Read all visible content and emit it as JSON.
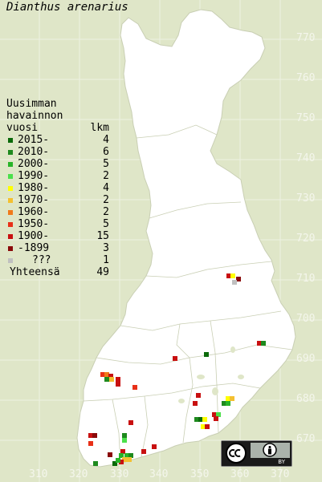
{
  "title": "Dianthus arenarius",
  "legend": {
    "header_lines": [
      "Uusimman",
      "havainnon",
      "vuosi"
    ],
    "count_header": "lkm",
    "items": [
      {
        "label": "2015-",
        "count": "4",
        "color": "#0a6a0a"
      },
      {
        "label": "2010-",
        "count": "6",
        "color": "#1e8a1e"
      },
      {
        "label": "2000-",
        "count": "5",
        "color": "#28b428"
      },
      {
        "label": "1990-",
        "count": "2",
        "color": "#4be04b"
      },
      {
        "label": "1980-",
        "count": "4",
        "color": "#ffff00"
      },
      {
        "label": "1970-",
        "count": "2",
        "color": "#f4c030"
      },
      {
        "label": "1960-",
        "count": "2",
        "color": "#f07a1a"
      },
      {
        "label": "1950-",
        "count": "5",
        "color": "#e83018"
      },
      {
        "label": "1900-",
        "count": "15",
        "color": "#c81010"
      },
      {
        "label": "-1899",
        "count": "3",
        "color": "#8a0a0a"
      },
      {
        "label": "???",
        "count": "1",
        "color": "#c0c0c0"
      }
    ],
    "total_label": "Yhteensä",
    "total_count": "49"
  },
  "x_axis_labels": [
    "310",
    "320",
    "330",
    "340",
    "350",
    "360",
    "370"
  ],
  "y_axis_labels": [
    "770",
    "760",
    "750",
    "740",
    "730",
    "720",
    "710",
    "700",
    "690",
    "680",
    "670"
  ],
  "license": {
    "text": "BY",
    "icons": [
      "cc-icon",
      "by-person-icon"
    ]
  }
}
